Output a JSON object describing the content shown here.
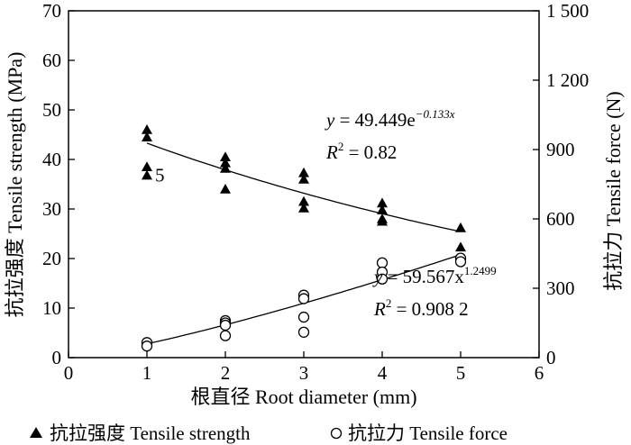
{
  "chart_data": {
    "type": "scatter",
    "xlabel": "根直径 Root diameter (mm)",
    "ylabel_left": "抗拉强度 Tensile strength (MPa)",
    "ylabel_right": "抗拉力 Tensile force (N)",
    "xlim": [
      0,
      6
    ],
    "ylim_left": [
      0,
      70
    ],
    "ylim_right": [
      0,
      1500
    ],
    "x_ticks": [
      "0",
      "1",
      "2",
      "3",
      "4",
      "5",
      "6"
    ],
    "y_ticks_left": [
      "0",
      "10",
      "20",
      "30",
      "40",
      "50",
      "60",
      "70"
    ],
    "y_ticks_right": [
      "0",
      "300",
      "600",
      "900",
      "1 200",
      "1 500"
    ],
    "grid": false,
    "legend_position": "bottom",
    "series": [
      {
        "name": "抗拉强度 Tensile strength",
        "marker": "filled-triangle",
        "axis": "left",
        "points": [
          [
            1,
            46.0
          ],
          [
            1,
            44.5
          ],
          [
            1,
            38.5
          ],
          [
            1,
            36.8
          ],
          [
            2,
            40.5
          ],
          [
            2,
            39.3
          ],
          [
            2,
            38.2
          ],
          [
            2,
            34.0
          ],
          [
            3,
            37.3
          ],
          [
            3,
            36.0
          ],
          [
            3,
            31.5
          ],
          [
            3,
            30.2
          ],
          [
            4,
            31.2
          ],
          [
            4,
            29.8
          ],
          [
            4,
            28.0
          ],
          [
            4,
            27.5
          ],
          [
            5,
            26.2
          ],
          [
            5,
            22.3
          ]
        ]
      },
      {
        "name": "抗拉力 Tensile force",
        "marker": "open-circle",
        "axis": "right",
        "points": [
          [
            1,
            65
          ],
          [
            1,
            50
          ],
          [
            2,
            160
          ],
          [
            2,
            150
          ],
          [
            2,
            140
          ],
          [
            2,
            95
          ],
          [
            3,
            270
          ],
          [
            3,
            255
          ],
          [
            3,
            175
          ],
          [
            3,
            110
          ],
          [
            4,
            410
          ],
          [
            4,
            370
          ],
          [
            4,
            340
          ],
          [
            5,
            430
          ],
          [
            5,
            415
          ]
        ]
      }
    ],
    "fits": [
      {
        "series": "抗拉强度 Tensile strength",
        "axis": "left",
        "model": "exponential",
        "a": 49.449,
        "b": -0.133,
        "x_range": [
          1,
          5
        ],
        "equation_lhs": "y",
        "equation_eq": " = 49.449e",
        "equation_exp": "−0.133x",
        "r2_label": "R",
        "r2_value": " = 0.82"
      },
      {
        "series": "抗拉力 Tensile force",
        "axis": "right",
        "model": "power",
        "a": 59.567,
        "b": 1.2499,
        "x_range": [
          1,
          5
        ],
        "equation_lhs": "y",
        "equation_eq": " = 59.567x",
        "equation_exp": "1.2499",
        "r2_label": "R",
        "r2_value": " = 0.908 2"
      }
    ],
    "annotations": [
      {
        "text": "5",
        "x": 1,
        "y": 36.8,
        "axis": "left"
      }
    ],
    "legend": [
      {
        "marker": "filled-triangle",
        "label": "抗拉强度 Tensile strength"
      },
      {
        "marker": "open-circle",
        "label": "抗拉力 Tensile force"
      }
    ]
  }
}
